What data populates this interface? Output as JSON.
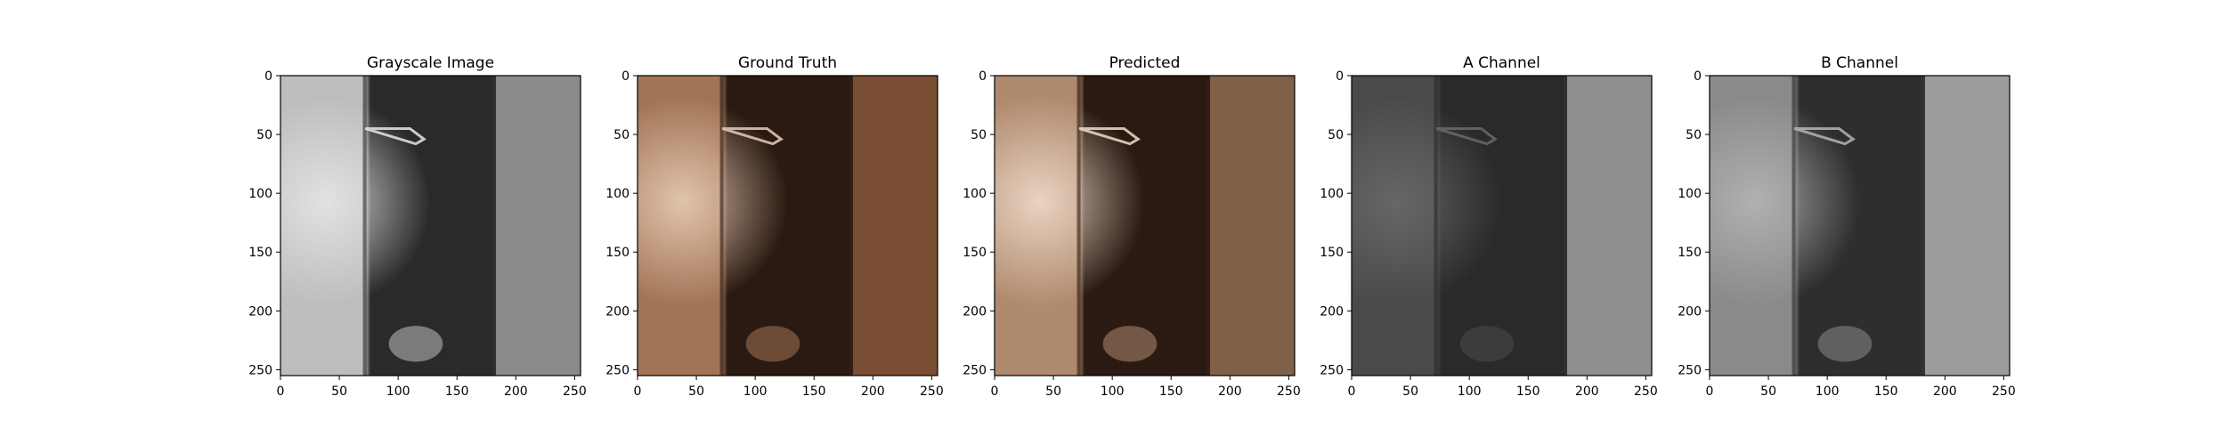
{
  "chart_data": [
    {
      "type": "image",
      "title": "Grayscale Image",
      "xlim": [
        0,
        255
      ],
      "ylim": [
        255,
        0
      ],
      "xticks": [
        0,
        50,
        100,
        150,
        200,
        250
      ],
      "yticks": [
        0,
        50,
        100,
        150,
        200,
        250
      ],
      "colormap": "grayscale",
      "palette": {
        "left": "#bdbdbd",
        "bright": "#e6e6e6",
        "dark": "#2a2a2a",
        "right": "#8a8a8a"
      }
    },
    {
      "type": "image",
      "title": "Ground Truth",
      "xlim": [
        0,
        255
      ],
      "ylim": [
        255,
        0
      ],
      "xticks": [
        0,
        50,
        100,
        150,
        200,
        250
      ],
      "yticks": [
        0,
        50,
        100,
        150,
        200,
        250
      ],
      "colormap": "color",
      "palette": {
        "left": "#a27456",
        "bright": "#e8cdb6",
        "dark": "#2b1a12",
        "right": "#7a4e33"
      }
    },
    {
      "type": "image",
      "title": "Predicted",
      "xlim": [
        0,
        255
      ],
      "ylim": [
        255,
        0
      ],
      "xticks": [
        0,
        50,
        100,
        150,
        200,
        250
      ],
      "yticks": [
        0,
        50,
        100,
        150,
        200,
        250
      ],
      "colormap": "color",
      "palette": {
        "left": "#b08a6e",
        "bright": "#f0dccb",
        "dark": "#2a1a12",
        "right": "#806048"
      }
    },
    {
      "type": "image",
      "title": "A Channel",
      "xlim": [
        0,
        255
      ],
      "ylim": [
        255,
        0
      ],
      "xticks": [
        0,
        50,
        100,
        150,
        200,
        250
      ],
      "yticks": [
        0,
        50,
        100,
        150,
        200,
        250
      ],
      "colormap": "grayscale",
      "palette": {
        "left": "#4a4a4a",
        "bright": "#6a6a6a",
        "dark": "#2a2a2a",
        "right": "#8f8f8f"
      }
    },
    {
      "type": "image",
      "title": "B Channel",
      "xlim": [
        0,
        255
      ],
      "ylim": [
        255,
        0
      ],
      "xticks": [
        0,
        50,
        100,
        150,
        200,
        250
      ],
      "yticks": [
        0,
        50,
        100,
        150,
        200,
        250
      ],
      "colormap": "grayscale",
      "palette": {
        "left": "#8a8a8a",
        "bright": "#b5b5b5",
        "dark": "#2e2e2e",
        "right": "#9c9c9c"
      }
    }
  ]
}
